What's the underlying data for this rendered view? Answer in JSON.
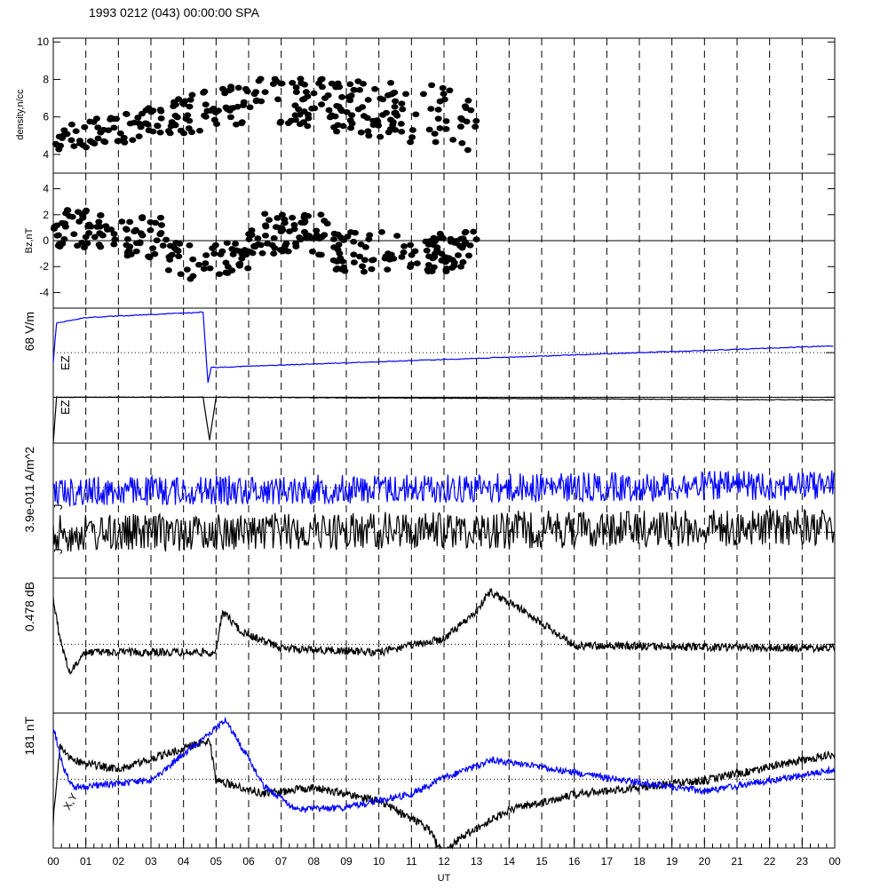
{
  "title": "1993 0212 (043) 00:00:00 SPA",
  "colors": {
    "black": "#000000",
    "blue": "#0000ff"
  },
  "x_axis": {
    "label": "UT",
    "ticks": [
      "00",
      "01",
      "02",
      "03",
      "04",
      "05",
      "06",
      "07",
      "08",
      "09",
      "10",
      "11",
      "12",
      "13",
      "14",
      "15",
      "16",
      "17",
      "18",
      "19",
      "20",
      "21",
      "22",
      "23",
      "00"
    ]
  },
  "chart_data": [
    {
      "type": "scatter",
      "panel": "density",
      "ylabel": "density,n/cc",
      "ylim": [
        3,
        10.2
      ],
      "yticks": [
        "4",
        "6",
        "8",
        "10"
      ],
      "grid": "vertical dashed hourly",
      "data_hours": [
        0,
        13.05
      ],
      "series": [
        {
          "color": "#000000",
          "x_range": [
            0,
            13.05
          ],
          "trend_y": [
            4.7,
            7.0,
            5.8
          ]
        }
      ]
    },
    {
      "type": "scatter",
      "panel": "bz",
      "ylabel": "Bz,nT",
      "ylim": [
        -5.2,
        5.2
      ],
      "yticks": [
        "4",
        "2",
        "0",
        "-2",
        "-4"
      ],
      "zero_line": true,
      "data_hours": [
        0,
        13.05
      ],
      "series": [
        {
          "color": "#000000",
          "x_range": [
            0,
            13.05
          ],
          "trend_y": [
            1.0,
            -1.5,
            0.5
          ]
        }
      ]
    },
    {
      "type": "line",
      "panel": "ez",
      "scale_label": "68 V/m",
      "trace_labels": [
        "EZ",
        "EZ"
      ],
      "series": [
        {
          "color": "#0000ff",
          "x": [
            0,
            0.1,
            1.0,
            4.6,
            4.75,
            4.85,
            24
          ],
          "y_frac": [
            0.4,
            0.11,
            0.07,
            0.03,
            0.55,
            0.44,
            0.28
          ]
        },
        {
          "color": "#000000",
          "x": [
            0,
            0.1,
            0.5,
            1.0,
            4.6,
            4.8,
            5.0,
            24
          ],
          "y_frac": [
            1.0,
            0.66,
            0.66,
            0.66,
            0.66,
            0.98,
            0.66,
            0.68
          ]
        }
      ]
    },
    {
      "type": "line",
      "panel": "j",
      "scale_label": "3.9e-011 A/m^2",
      "trace_labels": [
        "J",
        "J"
      ],
      "series": [
        {
          "color": "#0000ff",
          "baseline_frac": 0.36
        },
        {
          "color": "#000000",
          "baseline_frac": 0.67
        }
      ]
    },
    {
      "type": "line",
      "panel": "db",
      "scale_label": "0.478 dB",
      "series": [
        {
          "color": "#000000",
          "x": [
            0,
            0.2,
            0.5,
            1.0,
            5.0,
            5.2,
            5.8,
            7.0,
            10.0,
            12.0,
            13.0,
            13.4,
            14.5,
            16.0,
            24
          ],
          "y_frac": [
            0.15,
            0.45,
            0.7,
            0.55,
            0.55,
            0.25,
            0.4,
            0.52,
            0.55,
            0.45,
            0.25,
            0.1,
            0.25,
            0.5,
            0.52
          ]
        }
      ]
    },
    {
      "type": "line",
      "panel": "xy",
      "scale_label": "181 nT",
      "trace_labels": [
        "X",
        "Y"
      ],
      "series": [
        {
          "color": "#000000",
          "name_label": "X",
          "x": [
            0,
            0.2,
            0.6,
            2.0,
            4.8,
            5.0,
            6.5,
            8.0,
            10.0,
            11.5,
            12.0,
            12.5,
            14.0,
            16.0,
            18.0,
            20.0,
            24
          ],
          "y_frac": [
            0.8,
            0.25,
            0.35,
            0.42,
            0.2,
            0.5,
            0.6,
            0.55,
            0.65,
            0.85,
            1.05,
            0.92,
            0.72,
            0.6,
            0.55,
            0.5,
            0.3
          ]
        },
        {
          "color": "#0000ff",
          "name_label": "Y",
          "x": [
            0,
            0.3,
            0.6,
            3.0,
            5.3,
            6.5,
            7.5,
            9.0,
            11.0,
            12.0,
            13.5,
            15.0,
            17.0,
            20.0,
            24
          ],
          "y_frac": [
            0.1,
            0.4,
            0.55,
            0.5,
            0.05,
            0.55,
            0.72,
            0.7,
            0.6,
            0.48,
            0.35,
            0.4,
            0.48,
            0.58,
            0.42
          ]
        }
      ]
    }
  ]
}
